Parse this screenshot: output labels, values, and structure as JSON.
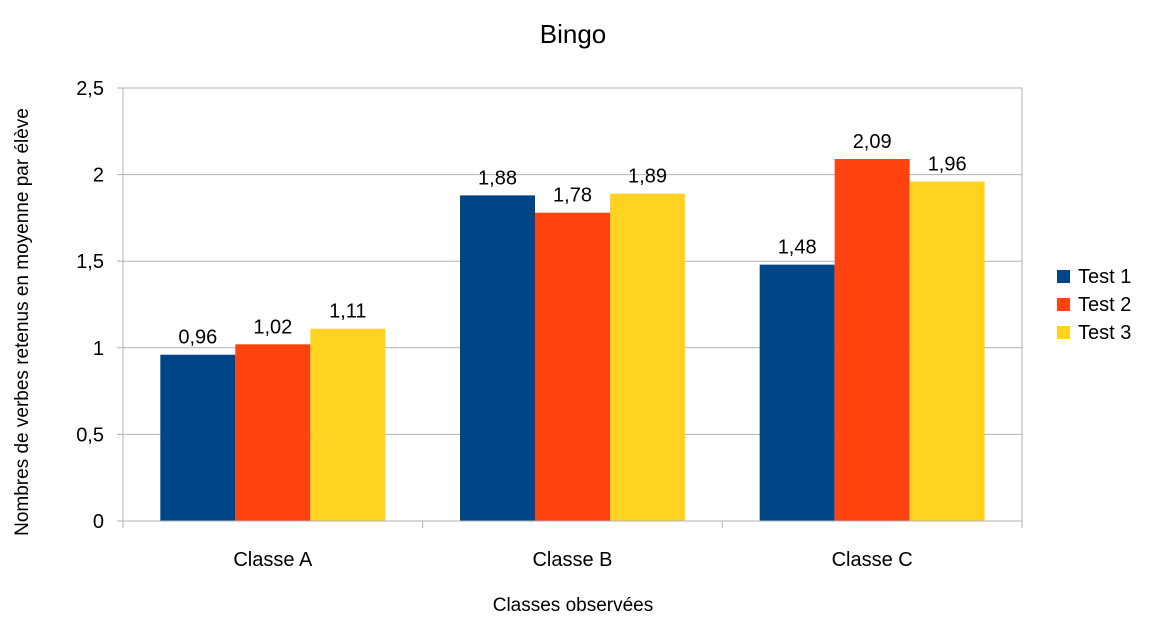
{
  "chart_data": {
    "type": "bar",
    "title": "Bingo",
    "xlabel": "Classes observées",
    "ylabel": "Nombres de verbes retenus en moyenne par élève",
    "categories": [
      "Classe A",
      "Classe B",
      "Classe C"
    ],
    "series": [
      {
        "name": "Test 1",
        "values": [
          0.96,
          1.88,
          1.48
        ],
        "labels": [
          "0,96",
          "1,88",
          "1,48"
        ],
        "color": "#004586"
      },
      {
        "name": "Test 2",
        "values": [
          1.02,
          1.78,
          2.09
        ],
        "labels": [
          "1,02",
          "1,78",
          "2,09"
        ],
        "color": "#ff420e"
      },
      {
        "name": "Test 3",
        "values": [
          1.11,
          1.89,
          1.96
        ],
        "labels": [
          "1,11",
          "1,89",
          "1,96"
        ],
        "color": "#ffd320"
      }
    ],
    "ylim": [
      0,
      2.5
    ],
    "yticks": [
      0,
      0.5,
      1,
      1.5,
      2,
      2.5
    ],
    "ytick_labels": [
      "0",
      "0,5",
      "1",
      "1,5",
      "2",
      "2,5"
    ],
    "grid": true,
    "legend_position": "right"
  }
}
